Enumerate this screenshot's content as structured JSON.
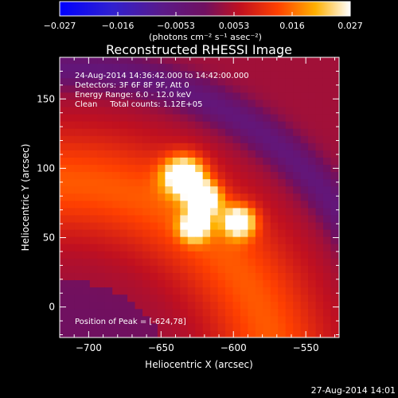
{
  "chart_data": {
    "type": "heatmap",
    "title": "Reconstructed RHESSI Image",
    "xlabel": "Heliocentric X (arcsec)",
    "ylabel": "Heliocentric Y (arcsec)",
    "xlim": [
      -720,
      -527
    ],
    "ylim": [
      -22,
      180
    ],
    "x_ticks": [
      -700,
      -650,
      -600,
      -550
    ],
    "y_ticks": [
      0,
      50,
      100,
      150
    ],
    "colorbar": {
      "ticks": [
        "-0.027",
        "-0.016",
        "-0.0053",
        "0.0053",
        "0.016",
        "0.027"
      ],
      "unit_label": "(photons cm⁻² s⁻¹ asec⁻²)",
      "range": [
        -0.027,
        0.027
      ]
    },
    "annotations": [
      "24-Aug-2014 14:36:42.000 to 14:42:00.000",
      "Detectors: 3F 6F 8F 9F, Att 0",
      "Energy Range: 6.0 - 12.0 keV",
      "Clean     Total counts: 1.12E+05"
    ],
    "peak_label": "Position of Peak = [-624,78]",
    "sources": [
      {
        "x": -634,
        "y": 95,
        "sigma": 10,
        "amplitude": 0.027
      },
      {
        "x": -620,
        "y": 78,
        "sigma": 8,
        "amplitude": 0.025
      },
      {
        "x": -627,
        "y": 58,
        "sigma": 7,
        "amplitude": 0.022
      },
      {
        "x": -596,
        "y": 62,
        "sigma": 8,
        "amplitude": 0.023
      }
    ]
  },
  "footer": {
    "timestamp": "27-Aug-2014 14:01"
  },
  "colors": {
    "background": "#000000",
    "text": "#ffffff"
  }
}
